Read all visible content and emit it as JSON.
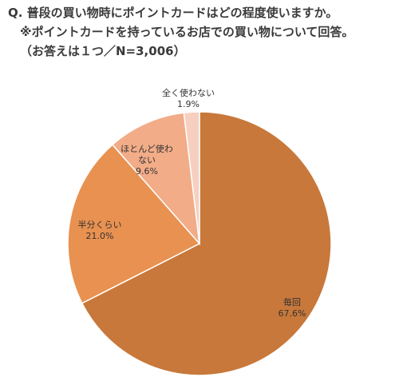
{
  "question": {
    "line1": "Q. 普段の買い物時にポイントカードはどの程度使いますか。",
    "line2": "※ポイントカードを持っているお店での買い物について回答。",
    "line3": "（お答えは１つ／N=3,006）"
  },
  "chart_data": {
    "type": "pie",
    "start": "12 o'clock",
    "direction": "clockwise",
    "slices": [
      {
        "label": "毎回",
        "value": 67.6,
        "value_label": "67.6%",
        "color": "#c8783a"
      },
      {
        "label": "半分くらい",
        "value": 21.0,
        "value_label": "21.0%",
        "color": "#e89150"
      },
      {
        "label": "ほとんど使わない",
        "value": 9.6,
        "value_label": "9.6%",
        "color": "#f2ac88"
      },
      {
        "label": "全く使わない",
        "value": 1.9,
        "value_label": "1.9%",
        "color": "#f7cfc0"
      }
    ]
  }
}
